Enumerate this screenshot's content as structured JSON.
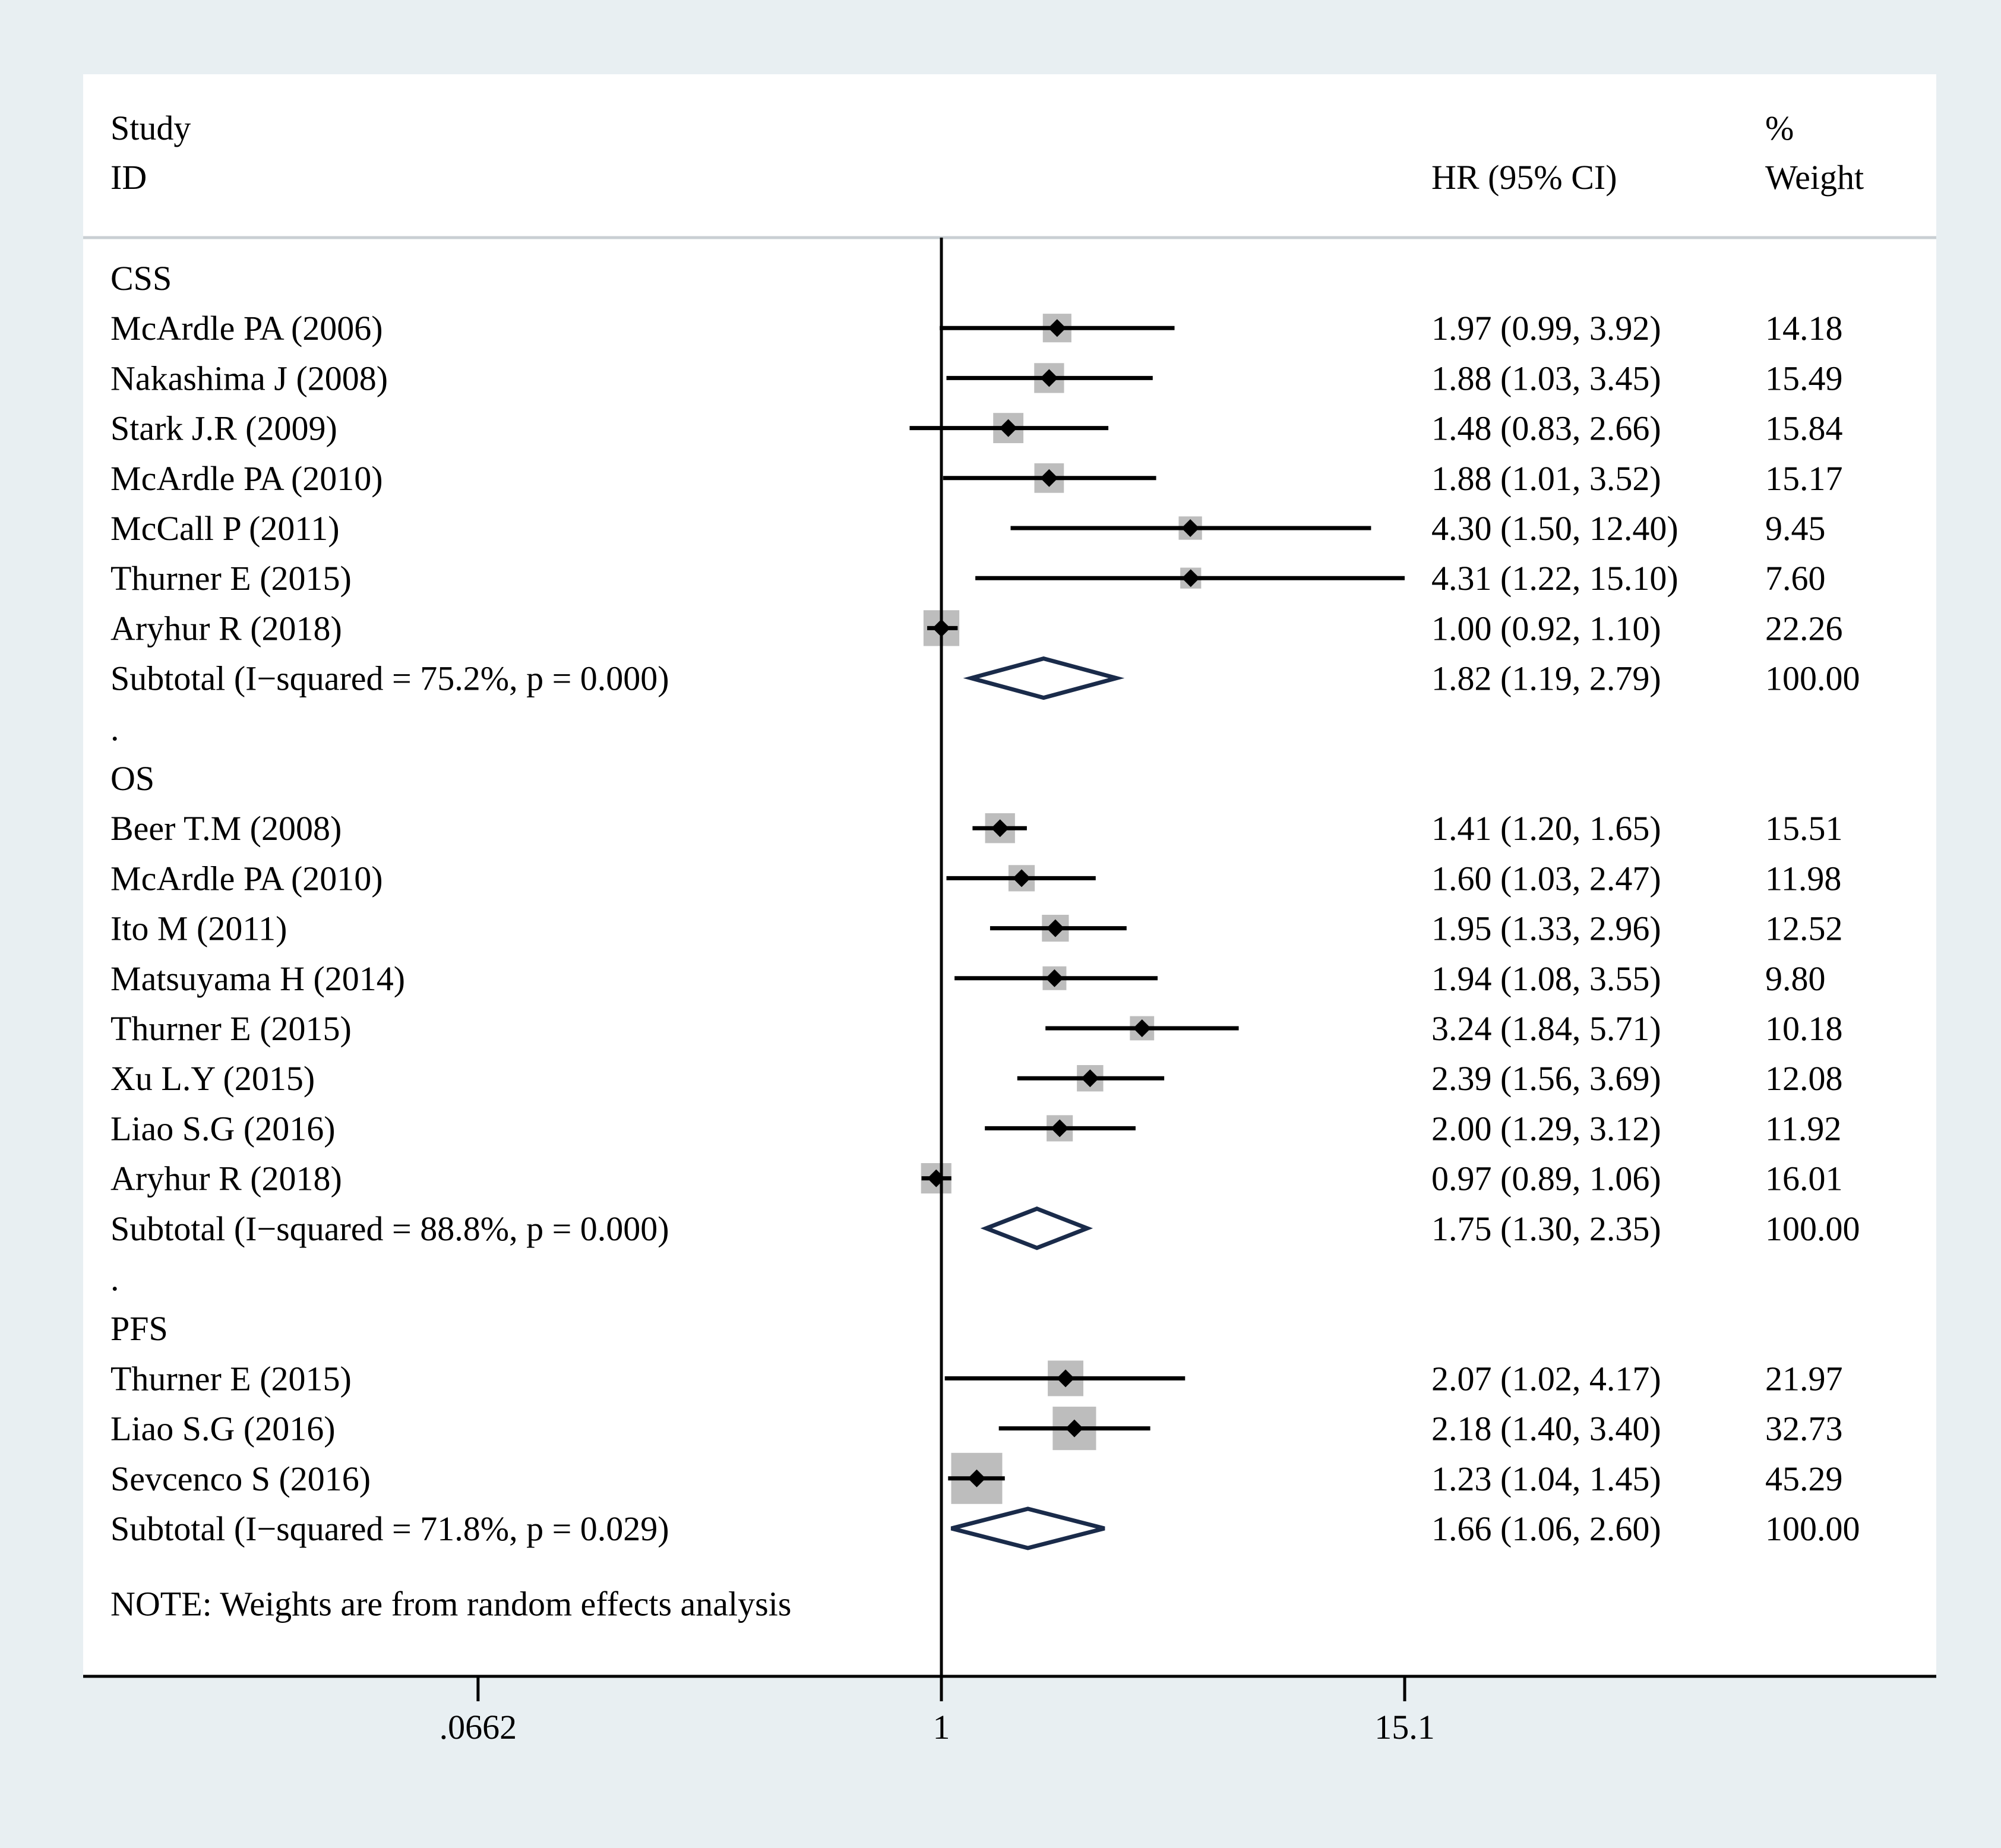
{
  "chart_data": {
    "type": "forest",
    "header": {
      "study_line1": "Study",
      "study_line2": "ID",
      "effect_label": "HR (95% CI)",
      "weight_line1": "%",
      "weight_line2": "Weight"
    },
    "x_scale": "log",
    "reference_line": 1,
    "xlim": [
      0.0662,
      15.1
    ],
    "x_ticks": [
      {
        "value": 0.0662,
        "label": ".0662"
      },
      {
        "value": 1,
        "label": "1"
      },
      {
        "value": 15.1,
        "label": "15.1"
      }
    ],
    "groups": [
      {
        "name": "CSS",
        "studies": [
          {
            "label": "McArdle PA  (2006)",
            "hr": 1.97,
            "lo": 0.99,
            "hi": 3.92,
            "ci_text": "1.97 (0.99, 3.92)",
            "weight": 14.18,
            "weight_text": "14.18"
          },
          {
            "label": "Nakashima J  (2008)",
            "hr": 1.88,
            "lo": 1.03,
            "hi": 3.45,
            "ci_text": "1.88 (1.03, 3.45)",
            "weight": 15.49,
            "weight_text": "15.49"
          },
          {
            "label": "Stark J.R  (2009)",
            "hr": 1.48,
            "lo": 0.83,
            "hi": 2.66,
            "ci_text": "1.48 (0.83, 2.66)",
            "weight": 15.84,
            "weight_text": "15.84"
          },
          {
            "label": "McArdle PA  (2010)",
            "hr": 1.88,
            "lo": 1.01,
            "hi": 3.52,
            "ci_text": "1.88 (1.01, 3.52)",
            "weight": 15.17,
            "weight_text": "15.17"
          },
          {
            "label": "McCall P  (2011)",
            "hr": 4.3,
            "lo": 1.5,
            "hi": 12.4,
            "ci_text": "4.30 (1.50, 12.40)",
            "weight": 9.45,
            "weight_text": "9.45"
          },
          {
            "label": "Thurner E  (2015)",
            "hr": 4.31,
            "lo": 1.22,
            "hi": 15.1,
            "ci_text": "4.31 (1.22, 15.10)",
            "weight": 7.6,
            "weight_text": "7.60"
          },
          {
            "label": "Aryhur R (2018)",
            "hr": 1.0,
            "lo": 0.92,
            "hi": 1.1,
            "ci_text": "1.00 (0.92, 1.10)",
            "weight": 22.26,
            "weight_text": "22.26"
          }
        ],
        "subtotal": {
          "label": "Subtotal  (I−squared = 75.2%, p = 0.000)",
          "hr": 1.82,
          "lo": 1.19,
          "hi": 2.79,
          "ci_text": "1.82 (1.19, 2.79)",
          "weight_text": "100.00"
        },
        "separator": "."
      },
      {
        "name": "OS",
        "studies": [
          {
            "label": "Beer T.M  (2008)",
            "hr": 1.41,
            "lo": 1.2,
            "hi": 1.65,
            "ci_text": "1.41 (1.20, 1.65)",
            "weight": 15.51,
            "weight_text": "15.51"
          },
          {
            "label": "McArdle PA  (2010)",
            "hr": 1.6,
            "lo": 1.03,
            "hi": 2.47,
            "ci_text": "1.60 (1.03, 2.47)",
            "weight": 11.98,
            "weight_text": "11.98"
          },
          {
            "label": "Ito M  (2011)",
            "hr": 1.95,
            "lo": 1.33,
            "hi": 2.96,
            "ci_text": "1.95 (1.33, 2.96)",
            "weight": 12.52,
            "weight_text": "12.52"
          },
          {
            "label": "Matsuyama H  (2014)",
            "hr": 1.94,
            "lo": 1.08,
            "hi": 3.55,
            "ci_text": "1.94 (1.08, 3.55)",
            "weight": 9.8,
            "weight_text": "9.80"
          },
          {
            "label": "Thurner E  (2015)",
            "hr": 3.24,
            "lo": 1.84,
            "hi": 5.71,
            "ci_text": "3.24 (1.84, 5.71)",
            "weight": 10.18,
            "weight_text": "10.18"
          },
          {
            "label": "Xu L.Y (2015)",
            "hr": 2.39,
            "lo": 1.56,
            "hi": 3.69,
            "ci_text": "2.39 (1.56, 3.69)",
            "weight": 12.08,
            "weight_text": "12.08"
          },
          {
            "label": "Liao S.G  (2016)",
            "hr": 2.0,
            "lo": 1.29,
            "hi": 3.12,
            "ci_text": "2.00 (1.29, 3.12)",
            "weight": 11.92,
            "weight_text": "11.92"
          },
          {
            "label": "Aryhur R (2018)",
            "hr": 0.97,
            "lo": 0.89,
            "hi": 1.06,
            "ci_text": "0.97 (0.89, 1.06)",
            "weight": 16.01,
            "weight_text": "16.01"
          }
        ],
        "subtotal": {
          "label": "Subtotal  (I−squared = 88.8%, p = 0.000)",
          "hr": 1.75,
          "lo": 1.3,
          "hi": 2.35,
          "ci_text": "1.75 (1.30, 2.35)",
          "weight_text": "100.00"
        },
        "separator": "."
      },
      {
        "name": "PFS",
        "studies": [
          {
            "label": "Thurner E  (2015)",
            "hr": 2.07,
            "lo": 1.02,
            "hi": 4.17,
            "ci_text": "2.07 (1.02, 4.17)",
            "weight": 21.97,
            "weight_text": "21.97"
          },
          {
            "label": "Liao S.G  (2016)",
            "hr": 2.18,
            "lo": 1.4,
            "hi": 3.4,
            "ci_text": "2.18 (1.40, 3.40)",
            "weight": 32.73,
            "weight_text": "32.73"
          },
          {
            "label": "Sevcenco S  (2016)",
            "hr": 1.23,
            "lo": 1.04,
            "hi": 1.45,
            "ci_text": "1.23 (1.04, 1.45)",
            "weight": 45.29,
            "weight_text": "45.29"
          }
        ],
        "subtotal": {
          "label": "Subtotal  (I−squared = 71.8%, p = 0.029)",
          "hr": 1.66,
          "lo": 1.06,
          "hi": 2.6,
          "ci_text": "1.66 (1.06, 2.60)",
          "weight_text": "100.00"
        }
      }
    ],
    "note": "NOTE: Weights are from random effects analysis",
    "colors": {
      "background": "#e8eff2",
      "panel": "#ffffff",
      "header_rule": "#c9cfd3",
      "weight_box": "#bdbdbd",
      "diamond": "#1a2b4a",
      "line": "#000000"
    }
  }
}
